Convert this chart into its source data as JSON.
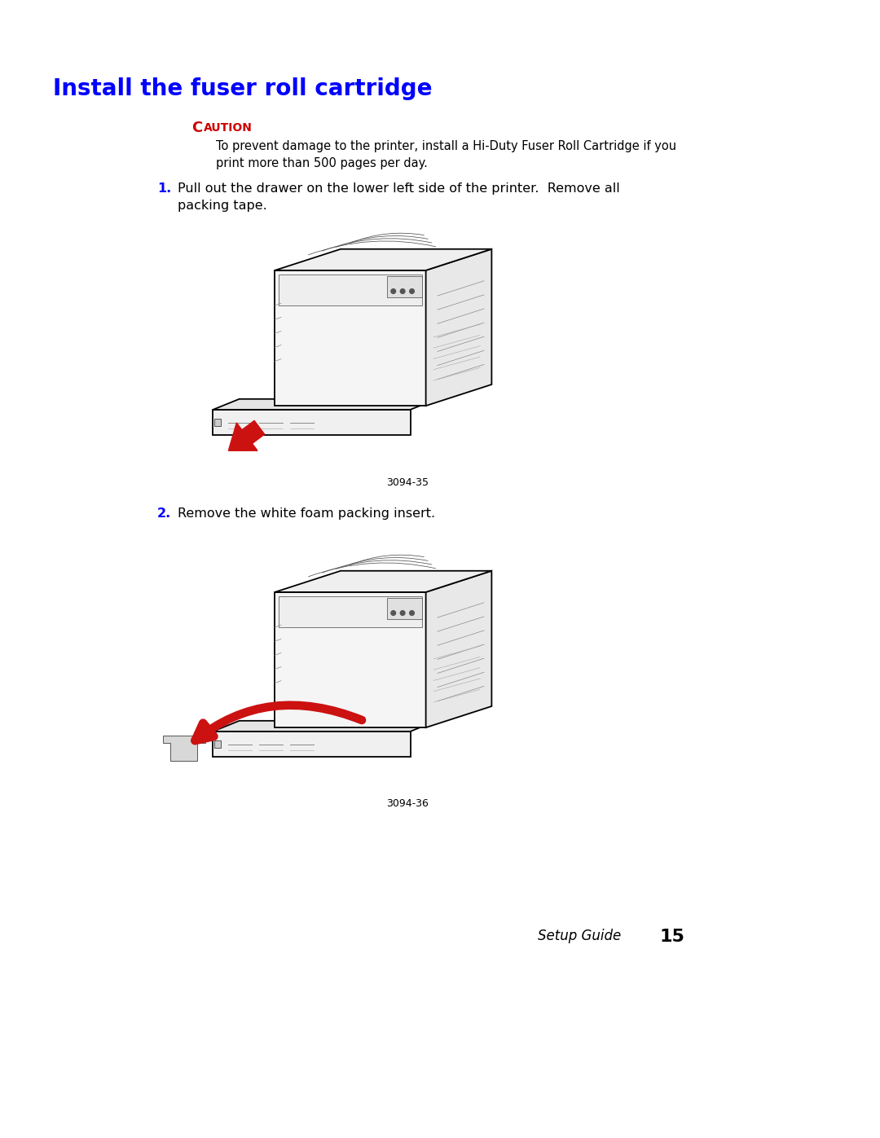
{
  "bg_color": "#ffffff",
  "title": "Install the fuser roll cartridge",
  "title_color": "#0000ff",
  "title_fontsize": 20,
  "caution_color": "#cc0000",
  "caution_fontsize": 12,
  "caution_text": "To prevent damage to the printer, install a Hi-Duty Fuser Roll Cartridge if you\nprint more than 500 pages per day.",
  "caution_text_fontsize": 10.5,
  "step1_text": "Pull out the drawer on the lower left side of the printer.  Remove all\npacking tape.",
  "step1_fontsize": 11.5,
  "fig1_caption": "3094-35",
  "step2_text": "Remove the white foam packing insert.",
  "step2_fontsize": 11.5,
  "fig2_caption": "3094-36",
  "footer_text": "Setup Guide",
  "footer_page": "15",
  "footer_fontsize": 12,
  "black": "#000000",
  "gray_light": "#e8e8e8",
  "gray_mid": "#c8c8c8",
  "gray_dark": "#888888",
  "red_arrow": "#cc1111"
}
